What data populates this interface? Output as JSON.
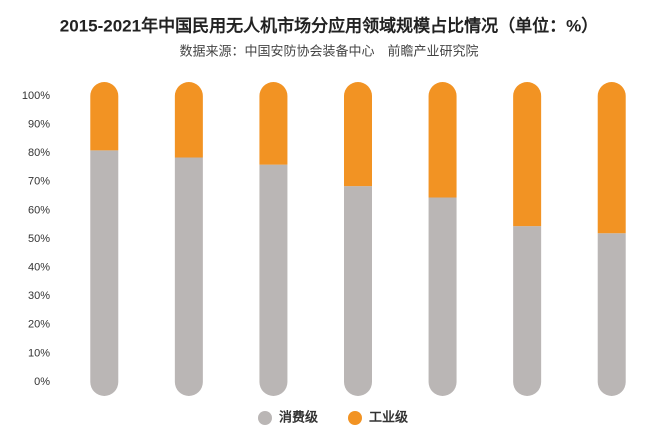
{
  "chart_data": {
    "type": "bar",
    "stacked": true,
    "title": "2015-2021年中国民用无人机市场分应用领域规模占比情况（单位：%）",
    "subtitle": "数据来源：中国安防协会装备中心　前瞻产业研究院",
    "categories": [
      null,
      null,
      null,
      null,
      null,
      null,
      null
    ],
    "series": [
      {
        "name": "消费级",
        "color": "#bab6b5",
        "values": [
          81,
          78.5,
          76,
          68.5,
          64.5,
          54.5,
          52
        ]
      },
      {
        "name": "工业级",
        "color": "#f29323",
        "values": [
          19,
          21.5,
          24,
          31.5,
          35.5,
          45.5,
          48
        ]
      }
    ],
    "ylim": [
      0,
      100
    ],
    "yticks": [
      {
        "value": 0,
        "label": "0%"
      },
      {
        "value": 10,
        "label": "10%"
      },
      {
        "value": 20,
        "label": "20%"
      },
      {
        "value": 30,
        "label": "30%"
      },
      {
        "value": 40,
        "label": "40%"
      },
      {
        "value": 50,
        "label": "50%"
      },
      {
        "value": 60,
        "label": "60%"
      },
      {
        "value": 70,
        "label": "70%"
      },
      {
        "value": 80,
        "label": "80%"
      },
      {
        "value": 90,
        "label": "90%"
      },
      {
        "value": 100,
        "label": "100%"
      }
    ],
    "grid": false,
    "legend": "bottom"
  }
}
